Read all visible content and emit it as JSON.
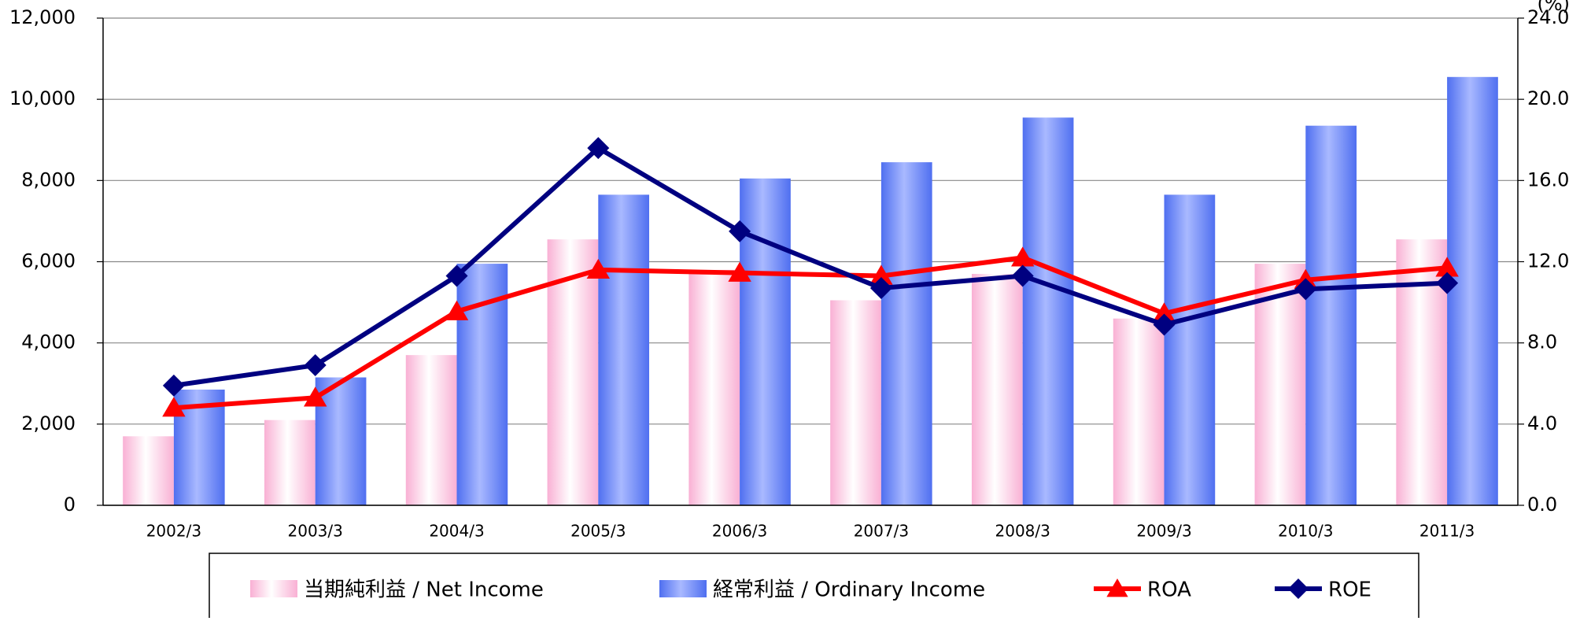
{
  "chart_data": {
    "type": "bar_line",
    "y2_label": "(%)",
    "categories": [
      "2002/3",
      "2003/3",
      "2004/3",
      "2005/3",
      "2006/3",
      "2007/3",
      "2008/3",
      "2009/3",
      "2010/3",
      "2011/3"
    ],
    "series": [
      {
        "name": "当期純利益 / Net Income",
        "color": "#f9b0d4",
        "kind": "bar",
        "values": [
          1700,
          2100,
          3700,
          6550,
          5800,
          5050,
          5700,
          4600,
          5950,
          6550
        ]
      },
      {
        "name": "経常利益 / Ordinary Income",
        "color": "#4f6ff0",
        "kind": "bar",
        "values": [
          2850,
          3150,
          5950,
          7650,
          8050,
          8450,
          9550,
          7650,
          9350,
          10550
        ]
      },
      {
        "name": "ROA",
        "color": "#ff0000",
        "kind": "line",
        "marker": "triangle",
        "axis": "y2",
        "values": [
          4.8,
          5.3,
          9.55,
          11.6,
          11.45,
          11.3,
          12.2,
          9.45,
          11.1,
          11.7
        ]
      },
      {
        "name": "ROE",
        "color": "#000080",
        "kind": "line",
        "marker": "diamond",
        "axis": "y2",
        "values": [
          5.9,
          6.9,
          11.3,
          17.6,
          13.5,
          10.7,
          11.3,
          8.9,
          10.65,
          10.95
        ]
      }
    ],
    "ylim": [
      0,
      12000
    ],
    "yticks": [
      0,
      {
        "value": 2000,
        "label": "2,000"
      },
      {
        "value": 4000,
        "label": "4,000"
      },
      {
        "value": 6000,
        "label": "6,000"
      },
      {
        "value": 8000,
        "label": "8,000"
      },
      {
        "value": 10000,
        "label": "10,000"
      },
      {
        "value": 12000,
        "label": "12,000"
      }
    ],
    "y2lim": [
      0,
      24
    ],
    "y2ticks": [
      {
        "value": 0,
        "label": "0.0"
      },
      {
        "value": 4,
        "label": "4.0"
      },
      {
        "value": 8,
        "label": "8.0"
      },
      {
        "value": 12,
        "label": "12.0"
      },
      {
        "value": 16,
        "label": "16.0"
      },
      {
        "value": 20,
        "label": "20.0"
      },
      {
        "value": 24,
        "label": "24.0"
      }
    ],
    "grid": true
  }
}
